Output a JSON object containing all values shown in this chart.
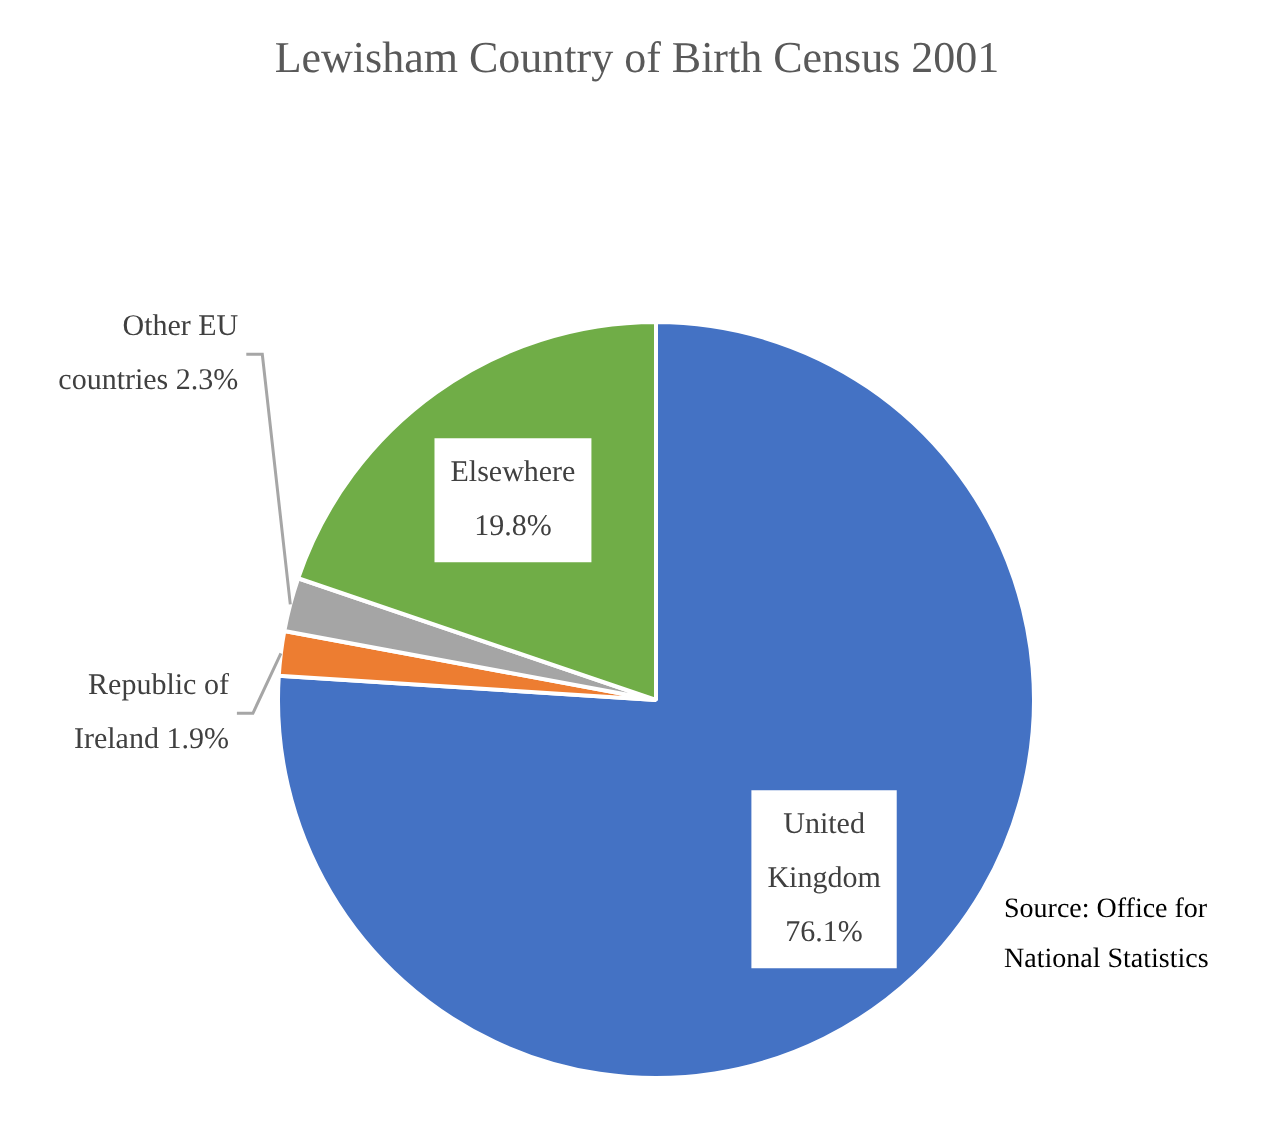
{
  "chart_data": {
    "type": "pie",
    "title": "Lewisham Country of Birth Census 2001",
    "categories": [
      "United Kingdom",
      "Republic of Ireland",
      "Other EU countries",
      "Elsewhere"
    ],
    "values": [
      76.1,
      1.9,
      2.3,
      19.8
    ],
    "colors": [
      "#4472c4",
      "#ed7d31",
      "#a5a5a5",
      "#70ad47"
    ],
    "value_labels": [
      "76.1%",
      "1.9%",
      "2.3%",
      "19.8%"
    ],
    "legend": false,
    "annotations": [
      "Source: Office for National Statistics"
    ]
  }
}
